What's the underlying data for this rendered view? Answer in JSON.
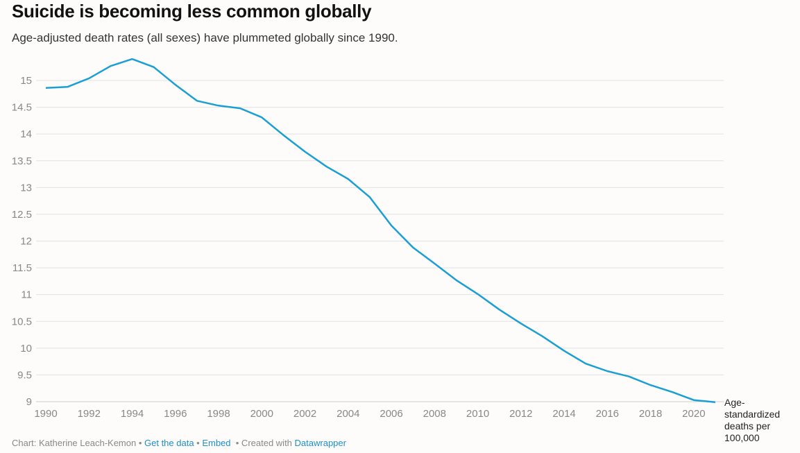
{
  "title": "Suicide is becoming less common globally",
  "subtitle": "Age-adjusted death rates (all sexes) have plummeted globally since 1990.",
  "unit_label": "Age-standardized deaths per 100,000",
  "footer": {
    "prefix": "Chart: Katherine Leach-Kemon",
    "sep": " • ",
    "get_data": "Get the data",
    "embed": "Embed",
    "created": "  • Created with ",
    "datawrapper": "Datawrapper"
  },
  "chart_data": {
    "type": "line",
    "title": "Suicide is becoming less common globally",
    "xlabel": "",
    "ylabel": "Age-standardized deaths per 100,000",
    "xlim": [
      1990,
      2021
    ],
    "ylim": [
      9,
      15.4
    ],
    "grid": true,
    "color": "#1a9fd4",
    "yticks": [
      9,
      9.5,
      10,
      10.5,
      11,
      11.5,
      12,
      12.5,
      13,
      13.5,
      14,
      14.5,
      15
    ],
    "ytick_labels": [
      "9",
      "9.5",
      "10",
      "10.5",
      "11",
      "11.5",
      "12",
      "12.5",
      "13",
      "13.5",
      "14",
      "14.5",
      "15"
    ],
    "xticks": [
      1990,
      1992,
      1994,
      1996,
      1998,
      2000,
      2002,
      2004,
      2006,
      2008,
      2010,
      2012,
      2014,
      2016,
      2018,
      2020
    ],
    "xtick_labels": [
      "1990",
      "1992",
      "1994",
      "1996",
      "1998",
      "2000",
      "2002",
      "2004",
      "2006",
      "2008",
      "2010",
      "2012",
      "2014",
      "2016",
      "2018",
      "2020"
    ],
    "x": [
      1990,
      1991,
      1992,
      1993,
      1994,
      1995,
      1996,
      1997,
      1998,
      1999,
      2000,
      2001,
      2002,
      2003,
      2004,
      2005,
      2006,
      2007,
      2008,
      2009,
      2010,
      2011,
      2012,
      2013,
      2014,
      2015,
      2016,
      2017,
      2018,
      2019,
      2020,
      2021
    ],
    "y": [
      14.86,
      14.88,
      15.04,
      15.27,
      15.4,
      15.25,
      14.92,
      14.62,
      14.53,
      14.48,
      14.31,
      13.98,
      13.67,
      13.39,
      13.16,
      12.82,
      12.29,
      11.88,
      11.58,
      11.27,
      11.01,
      10.72,
      10.46,
      10.22,
      9.95,
      9.71,
      9.57,
      9.47,
      9.31,
      9.18,
      9.03,
      8.99
    ]
  }
}
